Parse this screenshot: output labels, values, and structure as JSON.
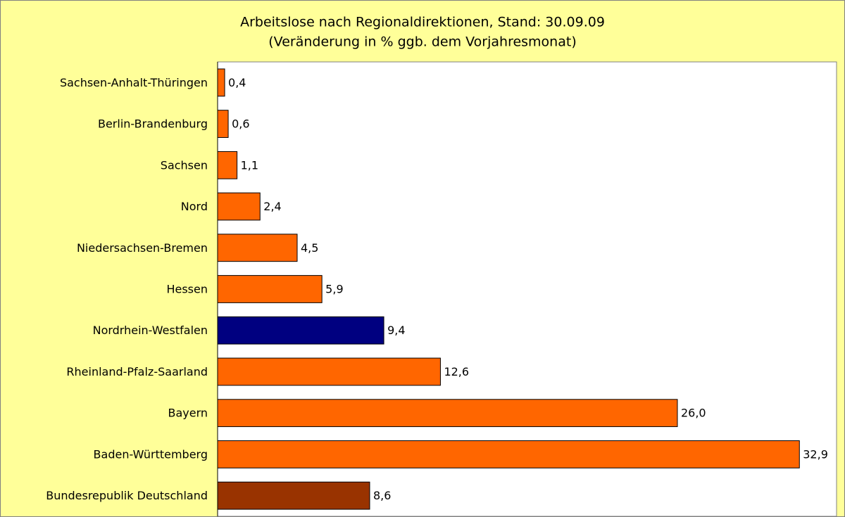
{
  "chart_data": {
    "type": "bar",
    "orientation": "horizontal",
    "title": "Arbeitslose nach Regionaldirektionen, Stand: 30.09.09",
    "subtitle": "(Veränderung in % ggb. dem Vorjahresmonat)",
    "categories": [
      "Sachsen-Anhalt-Thüringen",
      "Berlin-Brandenburg",
      "Sachsen",
      "Nord",
      "Niedersachsen-Bremen",
      "Hessen",
      "Nordrhein-Westfalen",
      "Rheinland-Pfalz-Saarland",
      "Bayern",
      "Baden-Württemberg",
      "Bundesrepublik Deutschland"
    ],
    "values": [
      0.4,
      0.6,
      1.1,
      2.4,
      4.5,
      5.9,
      9.4,
      12.6,
      26.0,
      32.9,
      8.6
    ],
    "value_labels": [
      "0,4",
      "0,6",
      "1,1",
      "2,4",
      "4,5",
      "5,9",
      "9,4",
      "12,6",
      "26,0",
      "32,9",
      "8,6"
    ],
    "colors": [
      "#ff6600",
      "#ff6600",
      "#ff6600",
      "#ff6600",
      "#ff6600",
      "#ff6600",
      "#000080",
      "#ff6600",
      "#ff6600",
      "#ff6600",
      "#993300"
    ],
    "xlim": [
      0,
      35
    ]
  }
}
